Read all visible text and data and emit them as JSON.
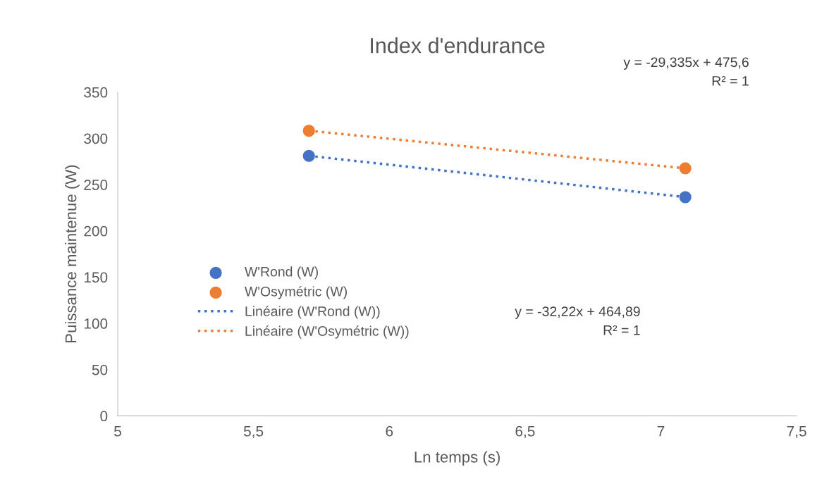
{
  "chart_data": {
    "type": "scatter",
    "title": "Index d'endurance",
    "xlabel": "Ln temps (s)",
    "ylabel": "Puissance maintenue (W)",
    "x": [
      5.704,
      7.09
    ],
    "xlim": [
      5,
      7.5
    ],
    "xticks": [
      {
        "value": 5,
        "label": "5"
      },
      {
        "value": 5.5,
        "label": "5,5"
      },
      {
        "value": 6,
        "label": "6"
      },
      {
        "value": 6.5,
        "label": "6,5"
      },
      {
        "value": 7,
        "label": "7"
      },
      {
        "value": 7.5,
        "label": "7,5"
      }
    ],
    "ylim": [
      0,
      350
    ],
    "yticks": [
      0,
      50,
      100,
      150,
      200,
      250,
      300,
      350
    ],
    "legend": "left",
    "marker": "circle",
    "series": [
      {
        "name": "W'Rond (W)",
        "color": "#4472c4",
        "values": [
          281.1,
          236.5
        ]
      },
      {
        "name": "W'Osymétric (W)",
        "color": "#ed7d31",
        "values": [
          308.3,
          267.6
        ]
      },
      {
        "name": "Linéaire (W'Rond (W))",
        "type": "line",
        "marker": "none",
        "line_style": "dotted",
        "color": "#4472c4",
        "values": [
          281.1,
          236.5
        ]
      },
      {
        "name": "Linéaire (W'Osymétric (W))",
        "type": "line",
        "marker": "none",
        "line_style": "dotted",
        "color": "#ed7d31",
        "values": [
          308.3,
          267.6
        ]
      }
    ],
    "annotations": [
      "y = -29,335x + 475,6\nR² = 1",
      "y = -32,22x + 464,89\nR² = 1"
    ]
  }
}
